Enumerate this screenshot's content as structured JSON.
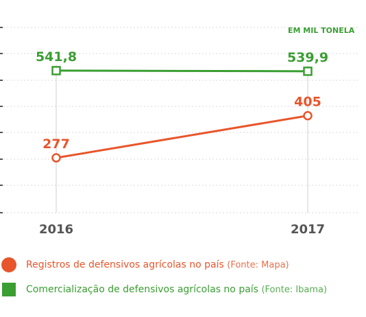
{
  "colors": {
    "orange": "#e8552b",
    "green": "#3a9e32",
    "grid": "#d8d8d8",
    "axis_text": "#555555"
  },
  "chart_data": {
    "type": "line",
    "unit_label": "EM MIL TONELA",
    "categories": [
      "2016",
      "2017"
    ],
    "ylim": [
      0,
      600
    ],
    "grid": true,
    "series": [
      {
        "key": "comercializacao",
        "marker": "square",
        "color": "#3a9e32",
        "values": [
          541.8,
          539.9
        ],
        "labels": [
          "541,8",
          "539,9"
        ]
      },
      {
        "key": "registros",
        "marker": "circle",
        "color": "#e8552b",
        "values": [
          277,
          405
        ],
        "labels": [
          "277",
          "405"
        ]
      }
    ]
  },
  "legend": {
    "items": [
      {
        "text": "Registros de defensivos agrícolas no país",
        "source": "(Fonte: Mapa)",
        "color": "#e8552b",
        "marker": "circle"
      },
      {
        "text": "Comercialização de defensivos agrícolas no país",
        "source": "(Fonte: Ibama)",
        "color": "#3a9e32",
        "marker": "square"
      }
    ]
  }
}
